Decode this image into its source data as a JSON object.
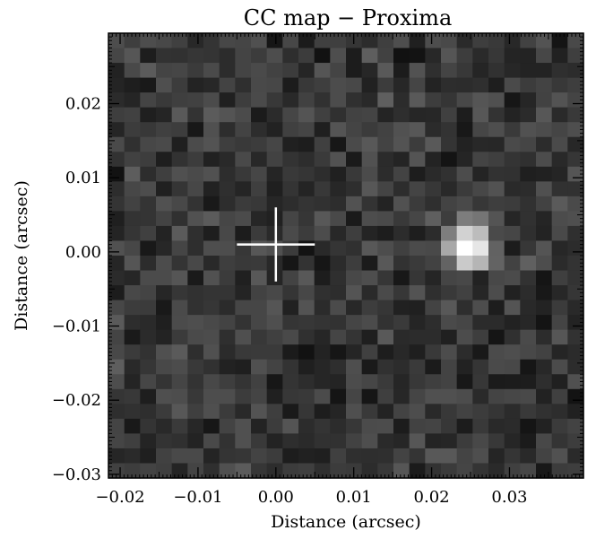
{
  "chart_data": {
    "type": "heatmap",
    "title": "CC map − Proxima",
    "xlabel": "Distance (arcsec)",
    "ylabel": "Distance (arcsec)",
    "xlim": [
      -0.0215,
      0.0395
    ],
    "ylim": [
      -0.0305,
      0.0295
    ],
    "x_ticks": [
      {
        "value": -0.02,
        "label": "−0.02"
      },
      {
        "value": -0.01,
        "label": "−0.01"
      },
      {
        "value": 0.0,
        "label": "0.00"
      },
      {
        "value": 0.01,
        "label": "0.01"
      },
      {
        "value": 0.02,
        "label": "0.02"
      },
      {
        "value": 0.03,
        "label": "0.03"
      }
    ],
    "y_ticks": [
      {
        "value": -0.03,
        "label": "−0.03"
      },
      {
        "value": -0.02,
        "label": "−0.02"
      },
      {
        "value": -0.01,
        "label": "−0.01"
      },
      {
        "value": 0.0,
        "label": "0.00"
      },
      {
        "value": 0.01,
        "label": "0.01"
      },
      {
        "value": 0.02,
        "label": "0.02"
      }
    ],
    "grid": false,
    "colormap": "grayscale",
    "cells": {
      "x_count": 30,
      "y_count": 30
    },
    "bright_source": {
      "x": 0.025,
      "y": 0.0008,
      "relative_peak": 1.0
    },
    "cross_marker": {
      "x": 0.0,
      "y": 0.001,
      "half_width": 0.005,
      "half_height": 0.005,
      "color": "#ffffff"
    },
    "background_level": 0.22
  }
}
